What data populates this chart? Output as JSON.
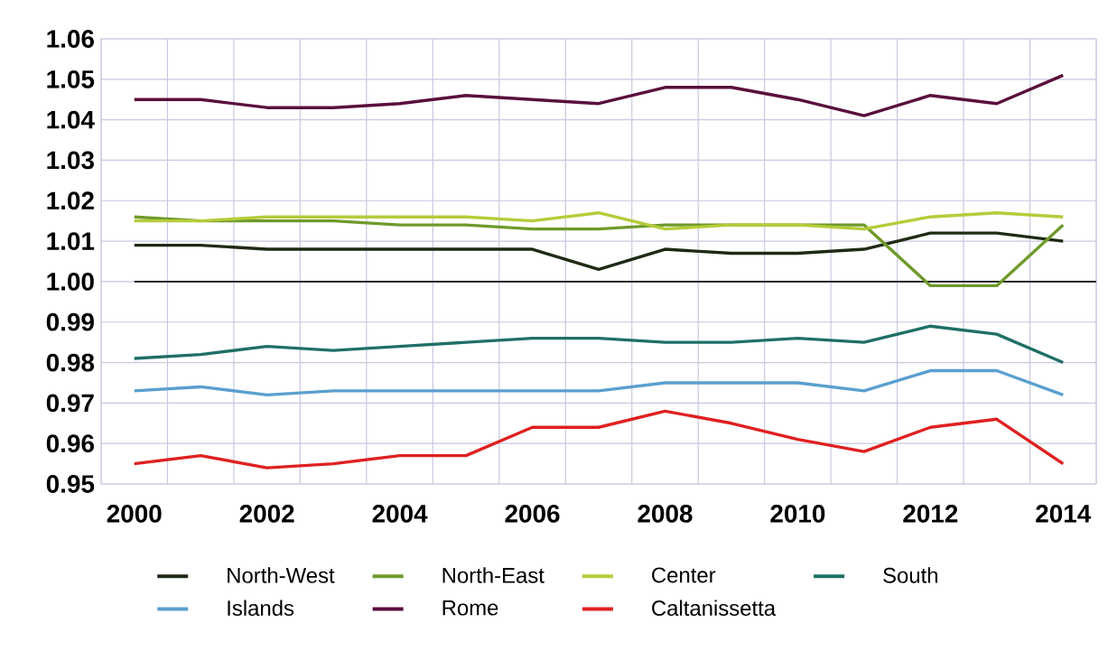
{
  "chart_data": {
    "type": "line",
    "categories": [
      "2000",
      null,
      "2002",
      null,
      "2004",
      null,
      "2006",
      null,
      "2008",
      null,
      "2010",
      null,
      "2012",
      null,
      "2014"
    ],
    "ylim": [
      0.95,
      1.06
    ],
    "yticks": [
      {
        "value": 0.95,
        "label": "0.95"
      },
      {
        "value": 0.96,
        "label": "0.96"
      },
      {
        "value": 0.97,
        "label": "0.97"
      },
      {
        "value": 0.98,
        "label": "0.98"
      },
      {
        "value": 0.99,
        "label": "0.99"
      },
      {
        "value": 1.0,
        "label": "1.00"
      },
      {
        "value": 1.01,
        "label": "1.01"
      },
      {
        "value": 1.02,
        "label": "1.02"
      },
      {
        "value": 1.03,
        "label": "1.03"
      },
      {
        "value": 1.04,
        "label": "1.04"
      },
      {
        "value": 1.05,
        "label": "1.05"
      },
      {
        "value": 1.06,
        "label": "1.06"
      }
    ],
    "grid": true,
    "legend": "bottom",
    "marker": "none",
    "line_style": "solid",
    "ref_lines": [
      {
        "axis": "y",
        "value": 1.0,
        "color": "#000000"
      }
    ],
    "series": [
      {
        "name": "North-West",
        "color": "#1f2a14",
        "values": [
          1.009,
          1.009,
          1.008,
          1.008,
          1.008,
          1.008,
          1.008,
          1.003,
          1.008,
          1.007,
          1.007,
          1.008,
          1.012,
          1.012,
          1.01
        ]
      },
      {
        "name": "North-East",
        "color": "#6e9a2a",
        "values": [
          1.016,
          1.015,
          1.015,
          1.015,
          1.014,
          1.014,
          1.013,
          1.013,
          1.014,
          1.014,
          1.014,
          1.014,
          0.999,
          0.999,
          1.014
        ]
      },
      {
        "name": "Center",
        "color": "#b5cc3a",
        "values": [
          1.015,
          1.015,
          1.016,
          1.016,
          1.016,
          1.016,
          1.015,
          1.017,
          1.013,
          1.014,
          1.014,
          1.013,
          1.016,
          1.017,
          1.016
        ]
      },
      {
        "name": "South",
        "color": "#1f6f66",
        "values": [
          0.981,
          0.982,
          0.984,
          0.983,
          0.984,
          0.985,
          0.986,
          0.986,
          0.985,
          0.985,
          0.986,
          0.985,
          0.989,
          0.987,
          0.98
        ]
      },
      {
        "name": "Islands",
        "color": "#5a9fcf",
        "values": [
          0.973,
          0.974,
          0.972,
          0.973,
          0.973,
          0.973,
          0.973,
          0.973,
          0.975,
          0.975,
          0.975,
          0.973,
          0.978,
          0.978,
          0.972
        ]
      },
      {
        "name": "Rome",
        "color": "#5a0f3c",
        "values": [
          1.045,
          1.045,
          1.043,
          1.043,
          1.044,
          1.046,
          1.045,
          1.044,
          1.048,
          1.048,
          1.045,
          1.041,
          1.046,
          1.044,
          1.051
        ]
      },
      {
        "name": "Caltanissetta",
        "color": "#e02020",
        "values": [
          0.955,
          0.957,
          0.954,
          0.955,
          0.957,
          0.957,
          0.964,
          0.964,
          0.968,
          0.965,
          0.961,
          0.958,
          0.964,
          0.966,
          0.955
        ]
      }
    ]
  }
}
